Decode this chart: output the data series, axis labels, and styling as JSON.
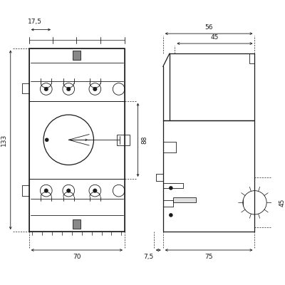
{
  "bg_color": "#ffffff",
  "line_color": "#1a1a1a",
  "fig_width": 4.0,
  "fig_height": 4.0,
  "dpi": 100
}
